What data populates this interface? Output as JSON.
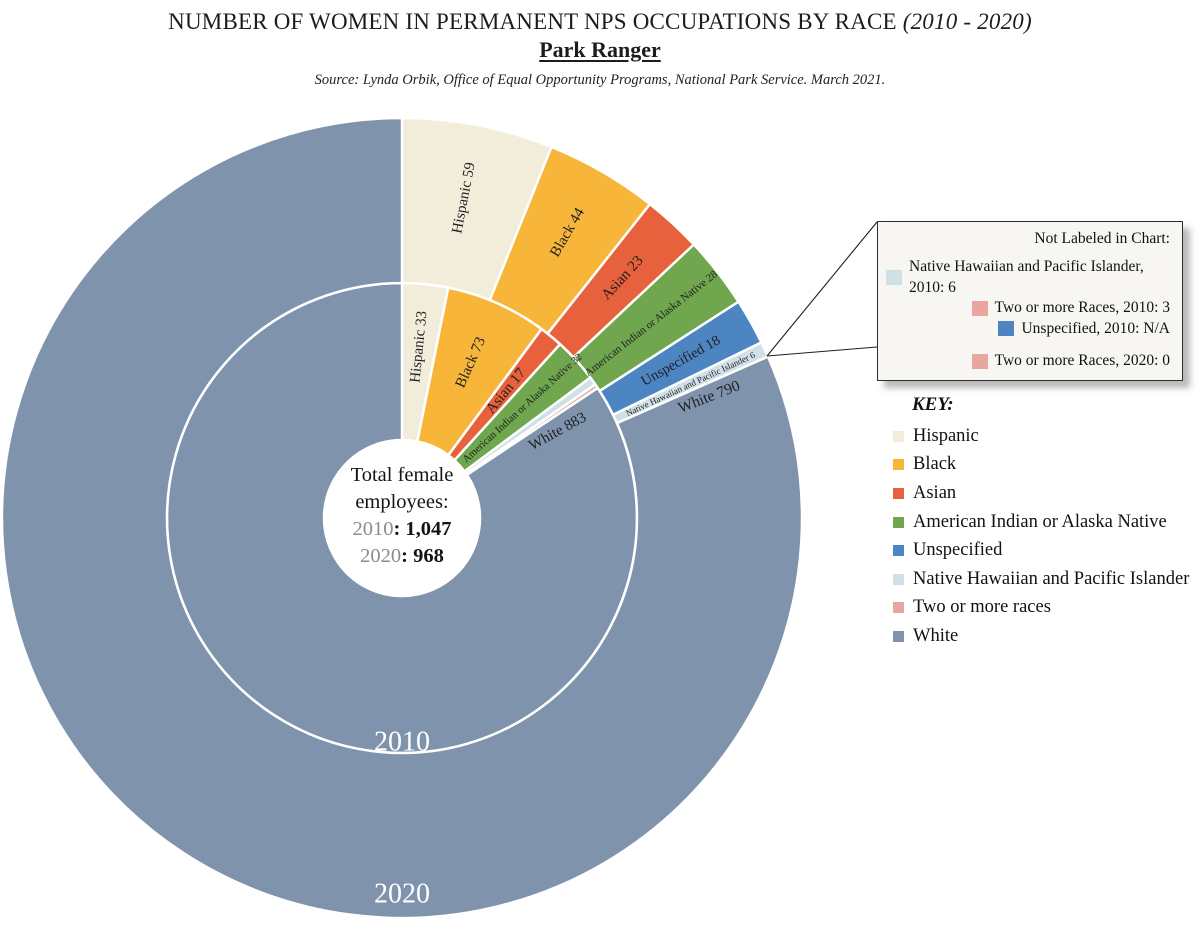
{
  "header": {
    "title_main": "NUMBER OF WOMEN IN PERMANENT NPS OCCUPATIONS BY RACE",
    "title_period": "(2010 - 2020)",
    "subtitle": "Park Ranger",
    "source": "Source: Lynda Orbik, Office of Equal Opportunity Programs, National Park Service. March 2021."
  },
  "center_label": {
    "line1": "Total female",
    "line2": "employees:",
    "totals": [
      {
        "year": "2010",
        "value": "1,047"
      },
      {
        "year": "2020",
        "value": "968"
      }
    ]
  },
  "callout": {
    "title": "Not Labeled in Chart:",
    "items": [
      {
        "color_key": "native_hawaiian",
        "text": "Native Hawaiian and Pacific Islander, 2010: 6",
        "gap_before": false
      },
      {
        "color_key": "two_or_more",
        "text": "Two or more Races, 2010: 3",
        "gap_before": false
      },
      {
        "color_key": "unspecified",
        "text": "Unspecified, 2010: N/A",
        "gap_before": false
      },
      {
        "color_key": "two_or_more",
        "text": "Two or more Races, 2020: 0",
        "gap_before": true
      }
    ]
  },
  "key": {
    "title": "KEY:",
    "items": [
      {
        "color_key": "hispanic",
        "label": "Hispanic"
      },
      {
        "color_key": "black",
        "label": "Black"
      },
      {
        "color_key": "asian",
        "label": "Asian"
      },
      {
        "color_key": "american_indian",
        "label": "American Indian or Alaska Native"
      },
      {
        "color_key": "unspecified",
        "label": "Unspecified"
      },
      {
        "color_key": "native_hawaiian",
        "label": "Native Hawaiian and Pacific Islander"
      },
      {
        "color_key": "two_or_more",
        "label": "Two or more races"
      },
      {
        "color_key": "white",
        "label": "White"
      }
    ]
  },
  "colors": {
    "hispanic": "#f2eddb",
    "black": "#f7b63a",
    "asian": "#e7613c",
    "american_indian": "#6fa64e",
    "unspecified": "#4d85c3",
    "native_hawaiian": "#cfe0e7",
    "two_or_more": "#e8a69e",
    "white": "#8093ad",
    "segment_label": "#1f1f1f",
    "ring_year_label": "#ffffff",
    "center_year_gray": "#8c8c8c",
    "leader_line": "#1f1f1f"
  },
  "chart_data": {
    "type": "sunburst",
    "title": "NUMBER OF WOMEN IN PERMANENT NPS OCCUPATIONS BY RACE (2010 - 2020)",
    "subtitle": "Park Ranger",
    "source": "Source: Lynda Orbik, Office of Equal Opportunity Programs, National Park Service. March 2021.",
    "legend_position": "right",
    "center_totals": {
      "2010": 1047,
      "2020": 968
    },
    "rings": [
      {
        "year": "2010",
        "position": "inner",
        "total": 1047,
        "segments": [
          {
            "race": "Hispanic",
            "value": 33,
            "color_key": "hispanic",
            "show_label": true,
            "label_size": 15,
            "label_radius": 172
          },
          {
            "race": "Black",
            "value": 73,
            "color_key": "black",
            "show_label": true,
            "label_size": 15,
            "label_radius": 170
          },
          {
            "race": "Asian",
            "value": 17,
            "color_key": "asian",
            "show_label": true,
            "label_size": 15,
            "label_radius": 164
          },
          {
            "race": "American Indian or Alaska Native",
            "value": 32,
            "color_key": "american_indian",
            "show_label": true,
            "label_size": 10.5,
            "label_radius": 163
          },
          {
            "race": "Native Hawaiian and Pacific Islander",
            "value": 6,
            "color_key": "native_hawaiian",
            "show_label": false
          },
          {
            "race": "Two or more Races",
            "value": 3,
            "color_key": "two_or_more",
            "show_label": false
          },
          {
            "race": "White",
            "value": 883,
            "color_key": "white",
            "show_label": true,
            "label_size": 15,
            "label_radius": 178,
            "label_angle": 61
          },
          {
            "race": "Unspecified",
            "value": null,
            "note": "N/A",
            "color_key": "unspecified",
            "show_label": false
          }
        ]
      },
      {
        "year": "2020",
        "position": "outer",
        "total": 968,
        "segments": [
          {
            "race": "Hispanic",
            "value": 59,
            "color_key": "hispanic",
            "show_label": true,
            "label_size": 15,
            "label_radius": 326
          },
          {
            "race": "Black",
            "value": 44,
            "color_key": "black",
            "show_label": true,
            "label_size": 15,
            "label_radius": 330
          },
          {
            "race": "Asian",
            "value": 23,
            "color_key": "asian",
            "show_label": true,
            "label_size": 15,
            "label_radius": 326
          },
          {
            "race": "American Indian or Alaska Native",
            "value": 28,
            "color_key": "american_indian",
            "show_label": true,
            "label_size": 11,
            "label_radius": 316
          },
          {
            "race": "Unspecified",
            "value": 18,
            "color_key": "unspecified",
            "show_label": true,
            "label_size": 14.5,
            "label_radius": 320
          },
          {
            "race": "Native Hawaiian and Pacific Islander",
            "value": 6,
            "color_key": "native_hawaiian",
            "show_label": true,
            "label_size": 9,
            "label_radius": 318
          },
          {
            "race": "White",
            "value": 790,
            "color_key": "white",
            "show_label": true,
            "label_size": 15.5,
            "label_radius": 330,
            "label_angle": 68.5
          },
          {
            "race": "Two or more Races",
            "value": 0,
            "color_key": "two_or_more",
            "show_label": false
          }
        ]
      }
    ],
    "ring_year_labels": [
      {
        "year": "2010",
        "radius": 224,
        "font_size": 28
      },
      {
        "year": "2020",
        "radius": 376,
        "font_size": 28
      }
    ]
  }
}
